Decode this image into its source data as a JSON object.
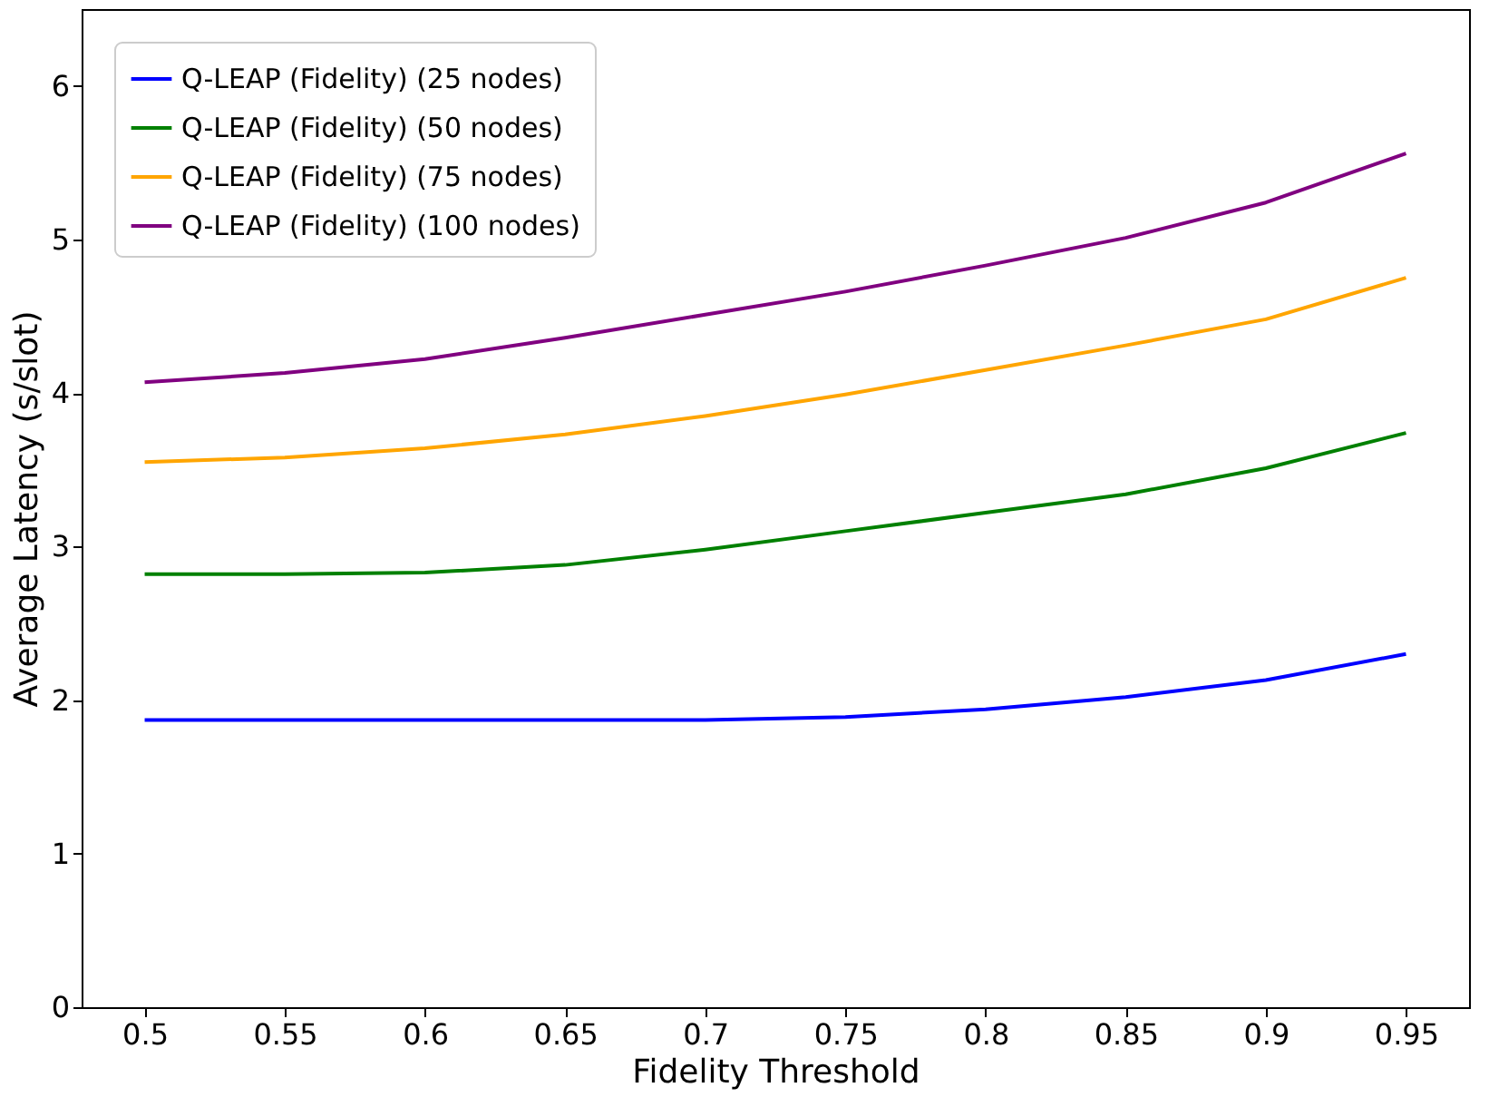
{
  "chart_data": {
    "type": "line",
    "xlabel": "Fidelity Threshold",
    "ylabel": "Average Latency (s/slot)",
    "x": [
      0.5,
      0.55,
      0.6,
      0.65,
      0.7,
      0.75,
      0.8,
      0.85,
      0.9,
      0.95
    ],
    "series": [
      {
        "name": "Q-LEAP (Fidelity) (25 nodes)",
        "color": "#0000ff",
        "values": [
          1.87,
          1.87,
          1.87,
          1.87,
          1.87,
          1.89,
          1.94,
          2.02,
          2.13,
          2.3
        ]
      },
      {
        "name": "Q-LEAP (Fidelity) (50 nodes)",
        "color": "#008000",
        "values": [
          2.82,
          2.82,
          2.83,
          2.88,
          2.98,
          3.1,
          3.22,
          3.34,
          3.51,
          3.74
        ]
      },
      {
        "name": "Q-LEAP (Fidelity) (75 nodes)",
        "color": "#ffa500",
        "values": [
          3.55,
          3.58,
          3.64,
          3.73,
          3.85,
          3.99,
          4.15,
          4.31,
          4.48,
          4.75
        ]
      },
      {
        "name": "Q-LEAP (Fidelity) (100 nodes)",
        "color": "#800080",
        "values": [
          4.07,
          4.13,
          4.22,
          4.36,
          4.51,
          4.66,
          4.83,
          5.01,
          5.24,
          5.56
        ]
      }
    ],
    "xlim": [
      0.4775,
      0.9725
    ],
    "xticks": [
      0.5,
      0.55,
      0.6,
      0.65,
      0.7,
      0.75,
      0.8,
      0.85,
      0.9,
      0.95
    ],
    "ylim": [
      0,
      6.5
    ],
    "yticks": [
      0,
      1,
      2,
      3,
      4,
      5,
      6
    ],
    "grid": false,
    "legend": "top left",
    "marker": "none",
    "line_style": "solid"
  }
}
